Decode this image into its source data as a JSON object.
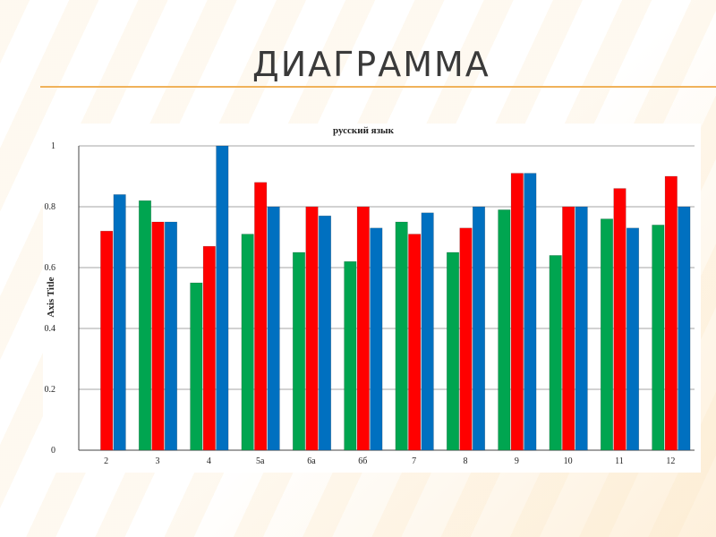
{
  "slide": {
    "title": "ДИАГРАММА"
  },
  "chart_data": {
    "type": "bar",
    "title": "русский язык",
    "xlabel": "",
    "ylabel": "Axis Title",
    "ylim": [
      0,
      1
    ],
    "yticks": [
      "0",
      "0.2",
      "0.4",
      "0.6",
      "0.8",
      "1"
    ],
    "categories": [
      "2",
      "3",
      "4",
      "5а",
      "6а",
      "6б",
      "7",
      "8",
      "9",
      "10",
      "11",
      "12"
    ],
    "grid": true,
    "series": [
      {
        "color": "#00a550",
        "values": [
          null,
          0.82,
          0.55,
          0.71,
          0.65,
          0.62,
          0.75,
          0.65,
          0.79,
          0.64,
          0.76,
          0.74
        ]
      },
      {
        "color": "#ff0000",
        "values": [
          0.72,
          0.75,
          0.67,
          0.88,
          0.8,
          0.8,
          0.71,
          0.73,
          0.91,
          0.8,
          0.86,
          0.9
        ]
      },
      {
        "color": "#0070c0",
        "values": [
          0.84,
          0.75,
          1.0,
          0.8,
          0.77,
          0.73,
          0.78,
          0.8,
          0.91,
          0.8,
          0.73,
          0.8
        ]
      }
    ]
  }
}
